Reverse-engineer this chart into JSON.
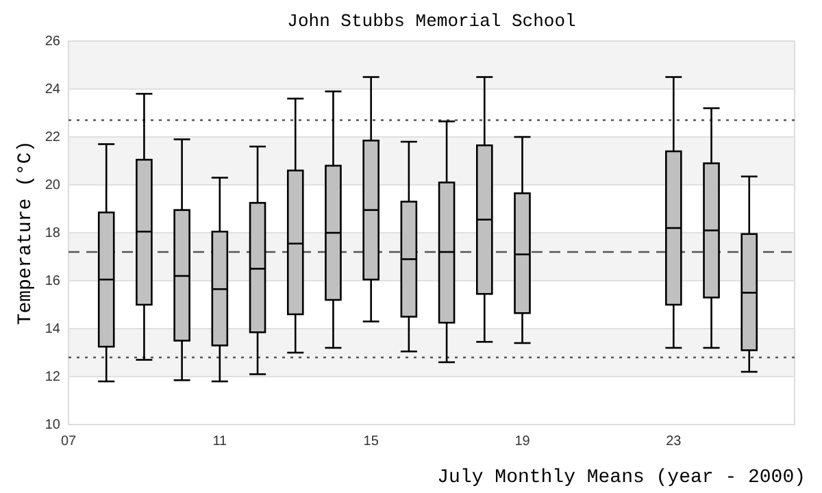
{
  "chart_data": {
    "type": "box",
    "title": "John Stubbs Memorial School",
    "xlabel": "July Monthly Means (year - 2000)",
    "ylabel": "Temperature (°C)",
    "x": [
      8,
      9,
      10,
      11,
      12,
      13,
      14,
      15,
      16,
      17,
      18,
      19,
      23,
      24,
      25
    ],
    "boxes": [
      {
        "low": 11.8,
        "q1": 13.25,
        "median": 16.05,
        "q3": 18.85,
        "high": 21.7
      },
      {
        "low": 12.7,
        "q1": 15.0,
        "median": 18.05,
        "q3": 21.05,
        "high": 23.8
      },
      {
        "low": 11.85,
        "q1": 13.5,
        "median": 16.2,
        "q3": 18.95,
        "high": 21.9
      },
      {
        "low": 11.8,
        "q1": 13.3,
        "median": 15.65,
        "q3": 18.05,
        "high": 20.3
      },
      {
        "low": 12.1,
        "q1": 13.85,
        "median": 16.5,
        "q3": 19.25,
        "high": 21.6
      },
      {
        "low": 13.0,
        "q1": 14.6,
        "median": 17.55,
        "q3": 20.6,
        "high": 23.6
      },
      {
        "low": 13.2,
        "q1": 15.2,
        "median": 18.0,
        "q3": 20.8,
        "high": 23.9
      },
      {
        "low": 14.3,
        "q1": 16.05,
        "median": 18.95,
        "q3": 21.85,
        "high": 24.5
      },
      {
        "low": 13.05,
        "q1": 14.5,
        "median": 16.9,
        "q3": 19.3,
        "high": 21.8
      },
      {
        "low": 12.6,
        "q1": 14.25,
        "median": 17.2,
        "q3": 20.1,
        "high": 22.65
      },
      {
        "low": 13.45,
        "q1": 15.45,
        "median": 18.55,
        "q3": 21.65,
        "high": 24.5
      },
      {
        "low": 13.4,
        "q1": 14.65,
        "median": 17.1,
        "q3": 19.65,
        "high": 22.0
      },
      {
        "low": 13.2,
        "q1": 15.0,
        "median": 18.2,
        "q3": 21.4,
        "high": 24.5
      },
      {
        "low": 13.2,
        "q1": 15.3,
        "median": 18.1,
        "q3": 20.9,
        "high": 23.2
      },
      {
        "low": 12.2,
        "q1": 13.1,
        "median": 15.5,
        "q3": 17.95,
        "high": 20.35
      }
    ],
    "color": "#c0c0c0",
    "xlim": [
      7,
      26.2
    ],
    "xticks": [
      {
        "value": 7,
        "label": "07"
      },
      11,
      15,
      19,
      23
    ],
    "ylim": [
      10,
      26
    ],
    "yticks": [
      10,
      12,
      14,
      16,
      18,
      20,
      22,
      24,
      26
    ],
    "grid": "y",
    "ref_lines": [
      {
        "axis": "y",
        "value": 22.7,
        "line_style": "dotted",
        "color": "#555555"
      },
      {
        "axis": "y",
        "value": 17.2,
        "line_style": "dashed",
        "color": "#555555"
      },
      {
        "axis": "y",
        "value": 12.8,
        "line_style": "dotted",
        "color": "#555555"
      }
    ]
  }
}
